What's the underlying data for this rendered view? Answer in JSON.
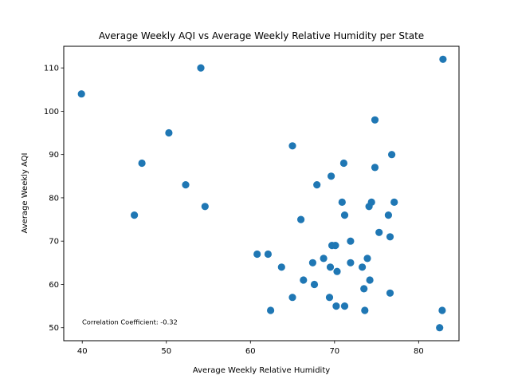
{
  "chart_data": {
    "type": "scatter",
    "title": "Average Weekly AQI vs Average Weekly Relative Humidity per State",
    "xlabel": "Average Weekly Relative Humidity",
    "ylabel": "Average Weekly AQI",
    "xlim": [
      37.8,
      84.8
    ],
    "ylim": [
      47,
      115
    ],
    "xticks": [
      40,
      50,
      60,
      70,
      80
    ],
    "yticks": [
      50,
      60,
      70,
      80,
      90,
      100,
      110
    ],
    "grid": false,
    "marker_color": "#1f77b4",
    "annotation": "Correlation Coefficient: -0.32",
    "points": [
      {
        "x": 39.9,
        "y": 104
      },
      {
        "x": 46.2,
        "y": 76
      },
      {
        "x": 47.1,
        "y": 88
      },
      {
        "x": 50.3,
        "y": 95
      },
      {
        "x": 52.3,
        "y": 83
      },
      {
        "x": 54.1,
        "y": 110
      },
      {
        "x": 54.6,
        "y": 78
      },
      {
        "x": 60.8,
        "y": 67
      },
      {
        "x": 62.1,
        "y": 67
      },
      {
        "x": 62.4,
        "y": 54
      },
      {
        "x": 63.7,
        "y": 64
      },
      {
        "x": 65.0,
        "y": 92
      },
      {
        "x": 65.0,
        "y": 57
      },
      {
        "x": 66.0,
        "y": 75
      },
      {
        "x": 66.3,
        "y": 61
      },
      {
        "x": 67.4,
        "y": 65
      },
      {
        "x": 67.6,
        "y": 60
      },
      {
        "x": 67.9,
        "y": 83
      },
      {
        "x": 68.7,
        "y": 66
      },
      {
        "x": 69.4,
        "y": 57
      },
      {
        "x": 69.5,
        "y": 64
      },
      {
        "x": 69.6,
        "y": 85
      },
      {
        "x": 69.7,
        "y": 69
      },
      {
        "x": 70.1,
        "y": 69
      },
      {
        "x": 70.2,
        "y": 55
      },
      {
        "x": 70.3,
        "y": 63
      },
      {
        "x": 70.9,
        "y": 79
      },
      {
        "x": 71.1,
        "y": 88
      },
      {
        "x": 71.2,
        "y": 76
      },
      {
        "x": 71.2,
        "y": 55
      },
      {
        "x": 71.9,
        "y": 65
      },
      {
        "x": 71.9,
        "y": 70
      },
      {
        "x": 73.3,
        "y": 64
      },
      {
        "x": 73.5,
        "y": 59
      },
      {
        "x": 73.6,
        "y": 54
      },
      {
        "x": 73.9,
        "y": 66
      },
      {
        "x": 74.1,
        "y": 78
      },
      {
        "x": 74.2,
        "y": 61
      },
      {
        "x": 74.4,
        "y": 79
      },
      {
        "x": 74.8,
        "y": 87
      },
      {
        "x": 74.8,
        "y": 98
      },
      {
        "x": 75.3,
        "y": 72
      },
      {
        "x": 76.4,
        "y": 76
      },
      {
        "x": 76.6,
        "y": 71
      },
      {
        "x": 76.6,
        "y": 58
      },
      {
        "x": 76.8,
        "y": 90
      },
      {
        "x": 77.1,
        "y": 79
      },
      {
        "x": 82.5,
        "y": 50
      },
      {
        "x": 82.8,
        "y": 54
      },
      {
        "x": 82.9,
        "y": 112
      }
    ]
  }
}
